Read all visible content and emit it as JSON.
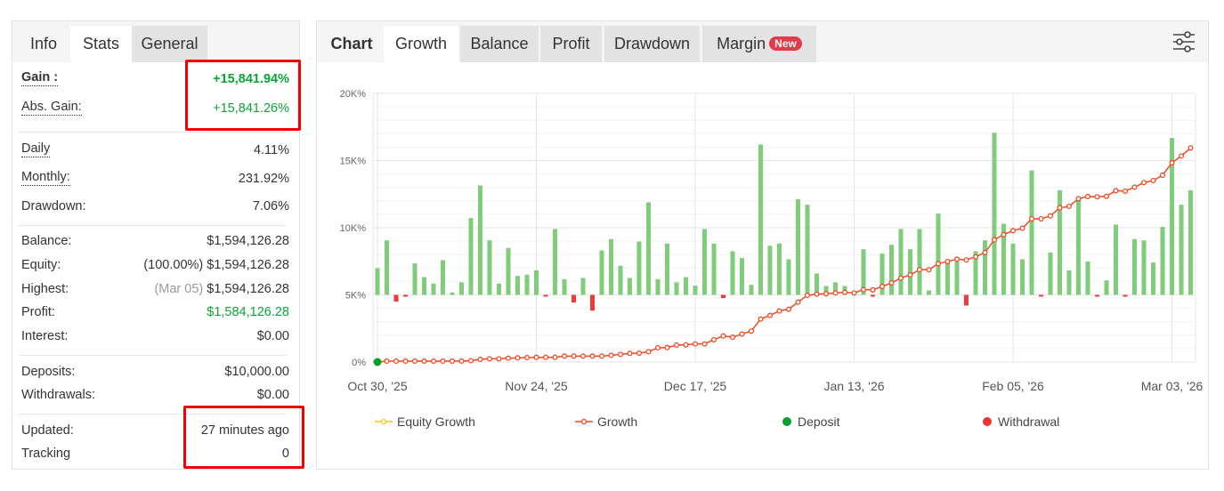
{
  "left_panel": {
    "tabs": [
      {
        "label": "Info"
      },
      {
        "label": "Stats"
      },
      {
        "label": "General"
      }
    ],
    "active_tab": "Stats",
    "gain": {
      "label": "Gain :",
      "value": "+15,841.94%"
    },
    "abs_gain": {
      "label": "Abs. Gain:",
      "value": "+15,841.26%"
    },
    "daily": {
      "label": "Daily",
      "value": "4.11%"
    },
    "monthly": {
      "label": "Monthly:",
      "value": "231.92%"
    },
    "drawdown": {
      "label": "Drawdown:",
      "value": "7.06%"
    },
    "balance": {
      "label": "Balance:",
      "value": "$1,594,126.28"
    },
    "equity": {
      "label": "Equity:",
      "pct": "(100.00%)",
      "value": "$1,594,126.28"
    },
    "highest": {
      "label": "Highest:",
      "date": "(Mar 05)",
      "value": "$1,594,126.28"
    },
    "profit": {
      "label": "Profit:",
      "value": "$1,584,126.28"
    },
    "interest": {
      "label": "Interest:",
      "value": "$0.00"
    },
    "deposits": {
      "label": "Deposits:",
      "value": "$10,000.00"
    },
    "withdrawals": {
      "label": "Withdrawals:",
      "value": "$0.00"
    },
    "updated": {
      "label": "Updated:",
      "value": "27 minutes ago"
    },
    "tracking": {
      "label": "Tracking",
      "value": "0"
    }
  },
  "right_panel": {
    "title_tab": "Chart",
    "tabs": [
      {
        "label": "Growth"
      },
      {
        "label": "Balance"
      },
      {
        "label": "Profit"
      },
      {
        "label": "Drawdown"
      },
      {
        "label": "Margin",
        "badge": "New"
      }
    ],
    "active_tab": "Growth",
    "settings_icon": "sliders-icon"
  },
  "colors": {
    "green": "#0ba537",
    "growth_line": "#f04a24",
    "bar_pos": "#7fcc7a",
    "bar_neg": "#f03a3a",
    "deposit": "#0a9e2e",
    "withdrawal": "#ee3333",
    "highlight": "#f30000"
  },
  "chart_data": {
    "type": "line+bar",
    "y_ticks": [
      "0%",
      "5K%",
      "10K%",
      "15K%",
      "20K%"
    ],
    "ylim": [
      0,
      20000
    ],
    "x_labels": [
      "Oct 30, '25",
      "Nov 24, '25",
      "Dec 17, '25",
      "Jan 13, '26",
      "Feb 05, '26",
      "Mar 03, '26"
    ],
    "x_label_index": [
      0,
      17,
      34,
      51,
      68,
      85
    ],
    "legend": [
      {
        "label": "Equity Growth",
        "color": "#f5c518"
      },
      {
        "label": "Growth",
        "color": "#f04a24"
      },
      {
        "label": "Deposit",
        "color": "#0a9e2e"
      },
      {
        "label": "Withdrawal",
        "color": "#ee3333"
      }
    ],
    "legend_position": "bottom",
    "growth_series_k_pct": [
      0,
      0.07,
      0.07,
      0.07,
      0.07,
      0.07,
      0.07,
      0.07,
      0.07,
      0.07,
      0.1,
      0.2,
      0.24,
      0.24,
      0.29,
      0.31,
      0.33,
      0.35,
      0.35,
      0.35,
      0.44,
      0.44,
      0.44,
      0.44,
      0.44,
      0.5,
      0.57,
      0.64,
      0.66,
      0.77,
      1.06,
      1.08,
      1.26,
      1.28,
      1.35,
      1.35,
      1.66,
      1.94,
      1.85,
      2.08,
      2.3,
      3.2,
      3.47,
      3.8,
      3.93,
      4.46,
      4.97,
      5.05,
      5.08,
      5.14,
      5.19,
      5.14,
      5.39,
      5.37,
      5.63,
      5.89,
      6.25,
      6.49,
      6.87,
      6.87,
      7.33,
      7.48,
      7.66,
      7.6,
      7.84,
      8.15,
      9.1,
      9.49,
      9.78,
      9.96,
      10.66,
      10.66,
      10.88,
      11.48,
      11.59,
      12.16,
      12.32,
      12.3,
      12.34,
      12.76,
      12.72,
      13.02,
      13.36,
      13.51,
      13.91,
      14.83,
      15.34,
      15.94
    ],
    "daily_bars_relative": [
      1.99,
      4.06,
      -0.5,
      -0.13,
      2.34,
      1.32,
      0.84,
      2.58,
      0.18,
      0.93,
      5.72,
      8.15,
      4.06,
      0.84,
      3.49,
      1.41,
      1.5,
      1.83,
      -0.07,
      4.9,
      1.17,
      -0.57,
      1.26,
      -1.17,
      3.31,
      4.15,
      2.16,
      1.26,
      3.97,
      6.89,
      1.17,
      3.82,
      0.93,
      1.32,
      0.68,
      4.9,
      3.82,
      -0.24,
      3.25,
      2.74,
      0.75,
      11.19,
      3.66,
      3.82,
      2.65,
      7.13,
      6.71,
      1.59,
      0.66,
      0.93,
      0.66,
      0,
      3.4,
      -0.11,
      3.07,
      3.73,
      4.9,
      3.4,
      4.9,
      0.33,
      6.05,
      2.47,
      2.58,
      -0.79,
      3.25,
      4.06,
      12.07,
      5.3,
      3.82,
      2.65,
      9.27,
      -0.11,
      3.16,
      7.79,
      1.83,
      7.13,
      2.49,
      -0.02,
      1.08,
      5.23,
      -0.07,
      4.15,
      4.06,
      2.41,
      5.06,
      11.68,
      6.71,
      7.79
    ],
    "deposit_index": [
      0
    ]
  }
}
